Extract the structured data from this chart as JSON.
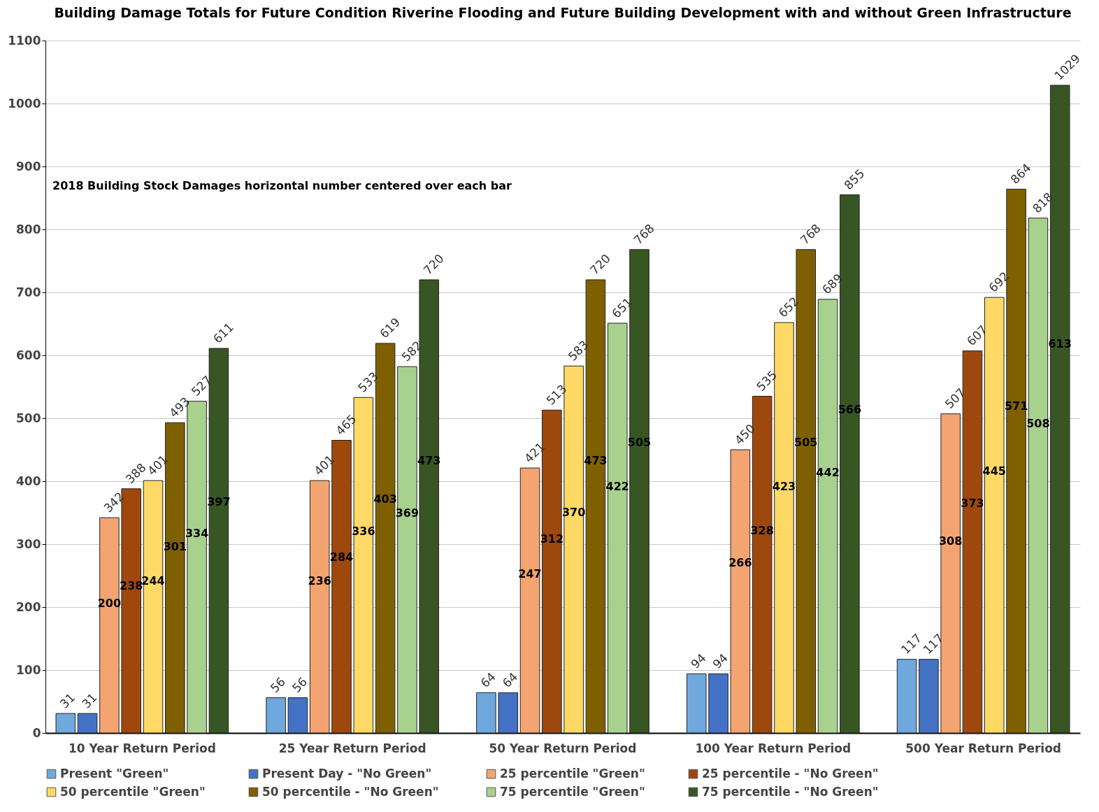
{
  "chart_data": {
    "type": "bar",
    "title": "Building Damage Totals for Future Condition Riverine Flooding and Future Building Development with and without Green Infrastructure",
    "categories": [
      "10 Year Return Period",
      "25 Year Return Period",
      "50 Year Return Period",
      "100 Year Return Period",
      "500 Year Return Period"
    ],
    "series": [
      {
        "name": "Present \"Green\"",
        "color": "#6fa8dc",
        "values": [
          31,
          56,
          64,
          94,
          117
        ]
      },
      {
        "name": "Present Day  - \"No Green\"",
        "color": "#4472c4",
        "values": [
          31,
          56,
          64,
          94,
          117
        ]
      },
      {
        "name": "25 percentile \"Green\"",
        "color": "#f4a470",
        "values": [
          342,
          401,
          421,
          450,
          507
        ]
      },
      {
        "name": "25 percentile  - \"No Green\"",
        "color": "#9e480e",
        "values": [
          388,
          465,
          513,
          535,
          607
        ]
      },
      {
        "name": "50 percentile \"Green\"",
        "color": "#ffd966",
        "values": [
          401,
          533,
          583,
          652,
          692
        ]
      },
      {
        "name": "50 percentile  - \"No Green\"",
        "color": "#7f6000",
        "values": [
          493,
          619,
          720,
          768,
          864
        ]
      },
      {
        "name": "75 percentile \"Green\"",
        "color": "#a9d18e",
        "values": [
          527,
          582,
          651,
          689,
          818
        ]
      },
      {
        "name": "75 percentile  - \"No Green\"",
        "color": "#375623",
        "values": [
          611,
          720,
          768,
          855,
          1029
        ]
      }
    ],
    "ylim": [
      0,
      1100
    ],
    "yticks": [
      0,
      100,
      200,
      300,
      400,
      500,
      600,
      700,
      800,
      900,
      1000,
      1100
    ],
    "grid": "y",
    "legend": "bottom",
    "data_labels": true,
    "annotations": [
      "2018 Building Stock Damages horizontal number centered over each bar",
      "200",
      "238",
      "244",
      "301",
      "334",
      "397",
      "236",
      "284",
      "336",
      "403",
      "369",
      "473",
      "247",
      "312",
      "370",
      "473",
      "422",
      "505",
      "266",
      "328",
      "423",
      "505",
      "442",
      "566",
      "308",
      "373",
      "445",
      "571",
      "508",
      "613"
    ]
  }
}
